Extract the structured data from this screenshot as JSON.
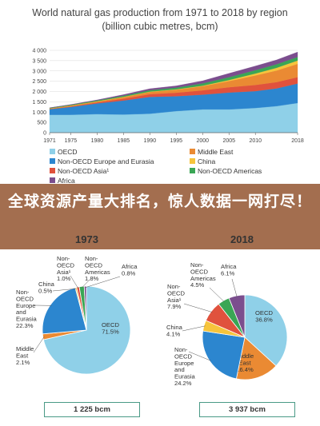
{
  "banner": "全球资源产量大排名，惊人数据一网打尽！",
  "colors": {
    "oecd": "#8fd0e8",
    "non_oecd_europe_eurasia": "#2c86cf",
    "non_oecd_asia": "#e0523d",
    "middle_east": "#ea8a33",
    "china": "#f6c43c",
    "non_oecd_americas": "#3aa655",
    "africa": "#7b4e8e"
  },
  "chart_data": [
    {
      "type": "area",
      "title": "World natural gas production from 1971 to 2018 by region",
      "subtitle": "(billion cubic metres, bcm)",
      "x_ticks": [
        "1971",
        "1975",
        "1980",
        "1985",
        "1990",
        "1995",
        "2000",
        "2005",
        "2010",
        "2018"
      ],
      "y_ticks": [
        "0",
        "500",
        "1 000",
        "1 500",
        "2 000",
        "2 500",
        "3 000",
        "3 500",
        "4 000"
      ],
      "ylim": [
        0,
        4000
      ],
      "x": [
        1971,
        1975,
        1980,
        1985,
        1990,
        1995,
        2000,
        2005,
        2010,
        2014,
        2018
      ],
      "series": [
        {
          "name": "OECD",
          "key": "oecd",
          "values": [
            870,
            870,
            900,
            880,
            920,
            1050,
            1130,
            1130,
            1200,
            1290,
            1440
          ]
        },
        {
          "name": "Non-OECD Europe and Eurasia",
          "key": "non_oecd_europe_eurasia",
          "values": [
            270,
            380,
            520,
            680,
            820,
            720,
            720,
            820,
            820,
            860,
            950
          ]
        },
        {
          "name": "Non-OECD Asia",
          "key": "non_oecd_asia",
          "values": [
            12,
            25,
            50,
            90,
            130,
            170,
            210,
            260,
            300,
            310,
            310
          ]
        },
        {
          "name": "Middle East",
          "key": "middle_east",
          "values": [
            25,
            40,
            45,
            80,
            110,
            150,
            200,
            300,
            460,
            560,
            645
          ]
        },
        {
          "name": "China",
          "key": "china",
          "values": [
            5,
            10,
            14,
            13,
            15,
            17,
            25,
            50,
            95,
            130,
            160
          ]
        },
        {
          "name": "Non-OECD Americas",
          "key": "non_oecd_americas",
          "values": [
            20,
            30,
            40,
            55,
            70,
            85,
            110,
            140,
            160,
            175,
            175
          ]
        },
        {
          "name": "Africa",
          "key": "africa",
          "values": [
            8,
            12,
            25,
            50,
            70,
            85,
            125,
            180,
            205,
            210,
            240
          ]
        }
      ]
    },
    {
      "type": "pie",
      "title": "1973 and 2018 regional shares of natural gas production",
      "pies": [
        {
          "year": "1973",
          "total": "1 225 bcm",
          "slices": [
            {
              "name": "OECD",
              "key": "oecd",
              "value": 71.5,
              "label": "OECD",
              "pct": "71.5%"
            },
            {
              "name": "Middle East",
              "key": "middle_east",
              "value": 2.1,
              "label": "Middle East",
              "pct": "2.1%"
            },
            {
              "name": "Non-OECD Europe and Eurasia",
              "key": "non_oecd_europe_eurasia",
              "value": 22.3,
              "label": "Non-OECD Europe and Eurasia",
              "pct": "22.3%"
            },
            {
              "name": "China",
              "key": "china",
              "value": 0.5,
              "label": "China",
              "pct": "0.5%"
            },
            {
              "name": "Non-OECD Asia",
              "key": "non_oecd_asia",
              "value": 1.0,
              "label": "Non-OECD Asia¹",
              "pct": "1.0%"
            },
            {
              "name": "Non-OECD Americas",
              "key": "non_oecd_americas",
              "value": 1.8,
              "label": "Non-OECD Americas",
              "pct": "1.8%"
            },
            {
              "name": "Africa",
              "key": "africa",
              "value": 0.8,
              "label": "Africa",
              "pct": "0.8%"
            }
          ]
        },
        {
          "year": "2018",
          "total": "3 937 bcm",
          "slices": [
            {
              "name": "OECD",
              "key": "oecd",
              "value": 36.8,
              "label": "OECD",
              "pct": "36.8%"
            },
            {
              "name": "Middle East",
              "key": "middle_east",
              "value": 16.4,
              "label": "Middle East",
              "pct": "16.4%"
            },
            {
              "name": "Non-OECD Europe and Eurasia",
              "key": "non_oecd_europe_eurasia",
              "value": 24.2,
              "label": "Non-OECD Europe and Eurasia",
              "pct": "24.2%"
            },
            {
              "name": "China",
              "key": "china",
              "value": 4.1,
              "label": "China",
              "pct": "4.1%"
            },
            {
              "name": "Non-OECD Asia",
              "key": "non_oecd_asia",
              "value": 7.9,
              "label": "Non-OECD Asia¹",
              "pct": "7.9%"
            },
            {
              "name": "Non-OECD Americas",
              "key": "non_oecd_americas",
              "value": 4.5,
              "label": "Non-OECD Americas",
              "pct": "4.5%"
            },
            {
              "name": "Africa",
              "key": "africa",
              "value": 6.1,
              "label": "Africa",
              "pct": "6.1%"
            }
          ]
        }
      ]
    }
  ]
}
